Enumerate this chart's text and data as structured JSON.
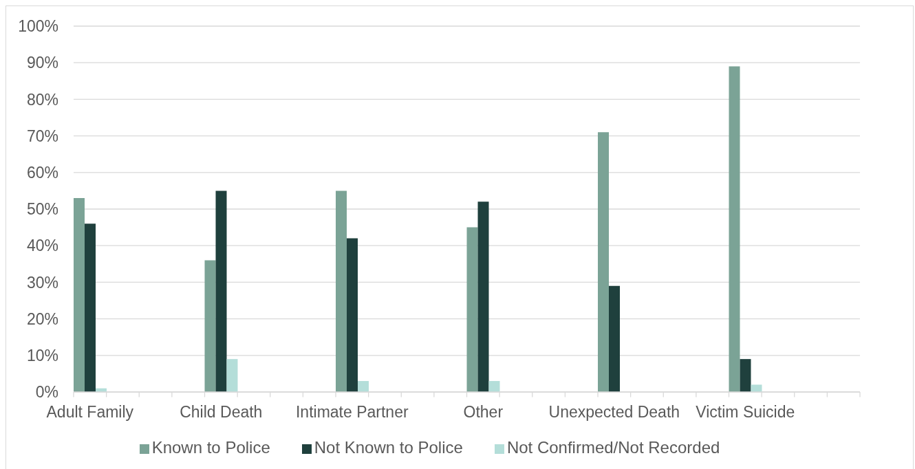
{
  "chart_data": {
    "type": "bar",
    "categories": [
      "Adult Family",
      null,
      null,
      null,
      "Child Death",
      null,
      null,
      null,
      "Intimate Partner",
      null,
      null,
      null,
      "Other",
      null,
      null,
      null,
      "Unexpected Death",
      null,
      null,
      null,
      "Victim Suicide",
      null,
      null,
      null
    ],
    "series": [
      {
        "name": "Known to Police",
        "color": "#7ba396",
        "values": [
          53,
          null,
          null,
          null,
          36,
          null,
          null,
          null,
          55,
          null,
          null,
          null,
          45,
          null,
          null,
          null,
          71,
          null,
          null,
          null,
          89,
          null,
          null,
          null
        ]
      },
      {
        "name": "Not Known to Police",
        "color": "#1f403d",
        "values": [
          46,
          null,
          null,
          null,
          55,
          null,
          null,
          null,
          42,
          null,
          null,
          null,
          52,
          null,
          null,
          null,
          29,
          null,
          null,
          null,
          9,
          null,
          null,
          null
        ]
      },
      {
        "name": "Not Confirmed/Not Recorded",
        "color": "#b4ded9",
        "values": [
          1,
          null,
          null,
          null,
          9,
          null,
          null,
          null,
          3,
          null,
          null,
          null,
          3,
          null,
          null,
          null,
          0,
          null,
          null,
          null,
          2,
          null,
          null,
          null
        ]
      }
    ],
    "ylim": [
      0,
      100
    ],
    "yticks": [
      {
        "value": 0,
        "label": "0%"
      },
      {
        "value": 10,
        "label": "10%"
      },
      {
        "value": 20,
        "label": "20%"
      },
      {
        "value": 30,
        "label": "30%"
      },
      {
        "value": 40,
        "label": "40%"
      },
      {
        "value": 50,
        "label": "50%"
      },
      {
        "value": 60,
        "label": "60%"
      },
      {
        "value": 70,
        "label": "70%"
      },
      {
        "value": 80,
        "label": "80%"
      },
      {
        "value": 90,
        "label": "90%"
      },
      {
        "value": 100,
        "label": "100%"
      }
    ],
    "grid": "y",
    "legend": "bottom"
  }
}
